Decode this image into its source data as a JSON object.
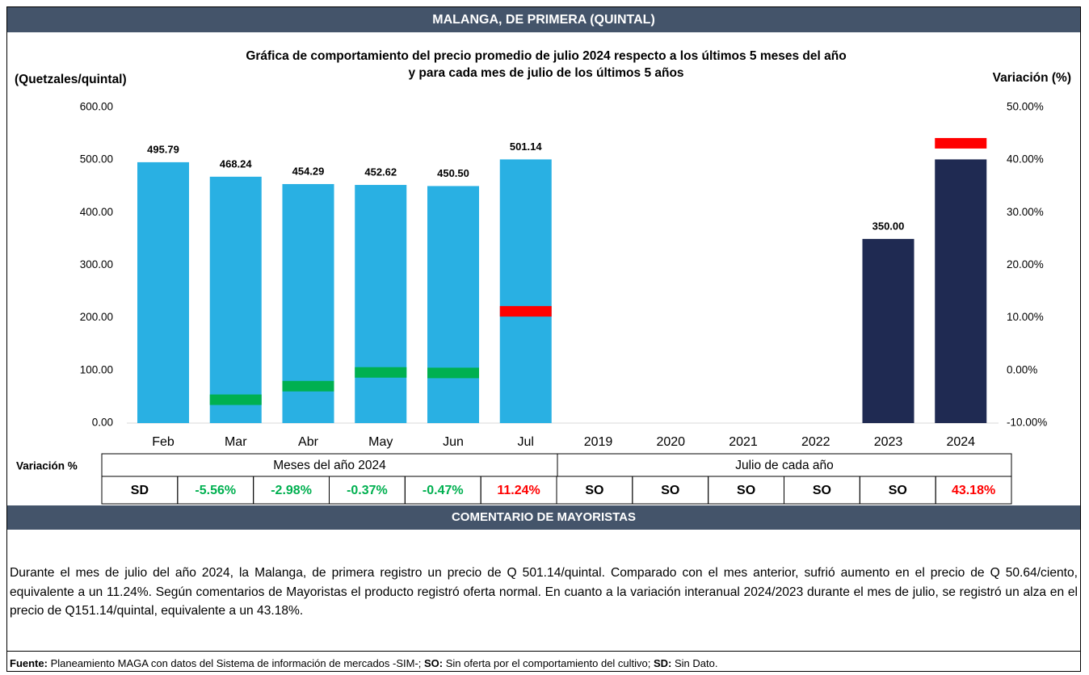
{
  "header": {
    "title": "MALANGA, DE PRIMERA (QUINTAL)"
  },
  "chart_data": {
    "type": "bar",
    "title": [
      "Gráfica de comportamiento del precio promedio de julio 2024 respecto a los últimos 5 meses del año",
      "y para cada mes de julio de los últimos 5 años"
    ],
    "y_label": "(Quetzales/quintal)",
    "y2_label": "Variación (%)",
    "categories": [
      "Feb",
      "Mar",
      "Abr",
      "May",
      "Jun",
      "Jul",
      "2019",
      "2020",
      "2021",
      "2022",
      "2023",
      "2024"
    ],
    "ylim": [
      0,
      600
    ],
    "yticks": [
      {
        "value": 0,
        "label": "0.00"
      },
      {
        "value": 100,
        "label": "100.00"
      },
      {
        "value": 200,
        "label": "200.00"
      },
      {
        "value": 300,
        "label": "300.00"
      },
      {
        "value": 400,
        "label": "400.00"
      },
      {
        "value": 500,
        "label": "500.00"
      },
      {
        "value": 600,
        "label": "600.00"
      }
    ],
    "y2lim": [
      -10,
      50
    ],
    "y2ticks": [
      {
        "value": -10,
        "label": "-10.00%"
      },
      {
        "value": 0,
        "label": "0.00%"
      },
      {
        "value": 10,
        "label": "10.00%"
      },
      {
        "value": 20,
        "label": "20.00%"
      },
      {
        "value": 30,
        "label": "30.00%"
      },
      {
        "value": 40,
        "label": "40.00%"
      },
      {
        "value": 50,
        "label": "50.00%"
      }
    ],
    "series": [
      {
        "type": "bar",
        "values": [
          495.79,
          468.24,
          454.29,
          452.62,
          450.5,
          501.14,
          null,
          null,
          null,
          null,
          350.0,
          501.14
        ],
        "value_labels": [
          "495.79",
          "468.24",
          "454.29",
          "452.62",
          "450.50",
          "501.14",
          null,
          null,
          null,
          null,
          "350.00",
          null
        ],
        "colors": [
          "#29b0e3",
          "#29b0e3",
          "#29b0e3",
          "#29b0e3",
          "#29b0e3",
          "#29b0e3",
          "#1f2a52",
          "#1f2a52",
          "#1f2a52",
          "#1f2a52",
          "#1f2a52",
          "#1f2a52"
        ]
      },
      {
        "type": "marker",
        "axis": "y2",
        "values": [
          null,
          -5.56,
          -2.98,
          -0.37,
          -0.47,
          11.24,
          null,
          null,
          null,
          null,
          null,
          43.18
        ],
        "value_labels": [
          "SD",
          "-5.56%",
          "-2.98%",
          "-0.37%",
          "-0.47%",
          "11.24%",
          "SO",
          "SO",
          "SO",
          "SO",
          "SO",
          "43.18%"
        ],
        "positive_color": "#ff0000",
        "negative_color": "#00b050"
      }
    ]
  },
  "table": {
    "row_label": "Variación %",
    "groups": [
      "Meses del año  2024",
      "Julio de cada año"
    ]
  },
  "comments": {
    "title": "COMENTARIO DE MAYORISTAS",
    "text": "Durante el mes de julio del año 2024, la Malanga, de primera registro un precio de Q 501.14/quintal. Comparado con el mes anterior, sufrió aumento en el precio de Q 50.64/ciento, equivalente a un 11.24%. Según comentarios de Mayoristas el producto registró oferta normal. En cuanto a la variación interanual 2024/2023 durante el mes de julio, se registró un alza en el precio de Q151.14/quintal, equivalente a un 43.18%."
  },
  "footer": {
    "parts": [
      {
        "text": "Fuente:",
        "bold": true
      },
      {
        "text": " Planeamiento MAGA con datos del Sistema de información de mercados -SIM-; ",
        "bold": false
      },
      {
        "text": "SO:",
        "bold": true
      },
      {
        "text": " Sin oferta por el comportamiento del cultivo; ",
        "bold": false
      },
      {
        "text": "SD:",
        "bold": true
      },
      {
        "text": " Sin Dato.",
        "bold": false
      }
    ]
  }
}
